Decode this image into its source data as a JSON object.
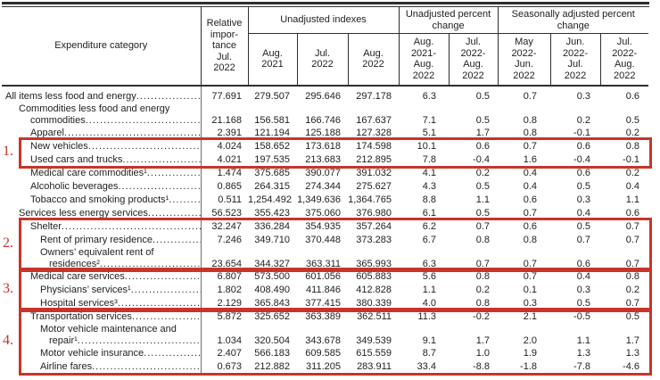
{
  "table": {
    "header": {
      "expenditure_category": "Expenditure category",
      "relative_importance": "Relative\nimpor-\ntance\nJul.\n2022",
      "groups": [
        {
          "label": "Unadjusted indexes",
          "cols": [
            "Aug.\n2021",
            "Jul.\n2022",
            "Aug.\n2022"
          ]
        },
        {
          "label": "Unadjusted percent\nchange",
          "cols": [
            "Aug.\n2021-\nAug.\n2022",
            "Jul.\n2022-\nAug.\n2022"
          ]
        },
        {
          "label": "Seasonally adjusted percent\nchange",
          "cols": [
            "May\n2022-\nJun.\n2022",
            "Jun.\n2022-\nJul.\n2022",
            "Jul.\n2022-\nAug.\n2022"
          ]
        }
      ]
    },
    "rows": [
      {
        "lines": [
          {
            "text": "All items less food and energy",
            "indent": 0
          }
        ],
        "values": [
          "77.691",
          "279.507",
          "295.646",
          "297.178",
          "6.3",
          "0.5",
          "0.7",
          "0.3",
          "0.6"
        ]
      },
      {
        "lines": [
          {
            "text": "Commodities less food and energy",
            "indent": 1
          },
          {
            "text": "commodities",
            "indent": 2
          }
        ],
        "values": [
          "21.168",
          "156.581",
          "166.746",
          "167.637",
          "7.1",
          "0.5",
          "0.8",
          "0.2",
          "0.5"
        ]
      },
      {
        "lines": [
          {
            "text": "Apparel",
            "indent": 2
          }
        ],
        "values": [
          "2.391",
          "121.194",
          "125.188",
          "127.328",
          "5.1",
          "1.7",
          "0.8",
          "-0.1",
          "0.2"
        ]
      },
      {
        "lines": [
          {
            "text": "New vehicles",
            "indent": 2
          }
        ],
        "values": [
          "4.024",
          "158.652",
          "173.618",
          "174.598",
          "10.1",
          "0.6",
          "0.7",
          "0.6",
          "0.8"
        ]
      },
      {
        "lines": [
          {
            "text": "Used cars and trucks",
            "indent": 2
          }
        ],
        "values": [
          "4.021",
          "197.535",
          "213.683",
          "212.895",
          "7.8",
          "-0.4",
          "1.6",
          "-0.4",
          "-0.1"
        ]
      },
      {
        "lines": [
          {
            "text": "Medical care commodities¹",
            "indent": 2
          }
        ],
        "values": [
          "1.474",
          "375.685",
          "390.077",
          "391.032",
          "4.1",
          "0.2",
          "0.4",
          "0.6",
          "0.2"
        ]
      },
      {
        "lines": [
          {
            "text": "Alcoholic beverages",
            "indent": 2
          }
        ],
        "values": [
          "0.865",
          "264.315",
          "274.344",
          "275.627",
          "4.3",
          "0.5",
          "0.4",
          "0.5",
          "0.4"
        ]
      },
      {
        "lines": [
          {
            "text": "Tobacco and smoking products¹",
            "indent": 2
          }
        ],
        "values": [
          "0.511",
          "1,254.492",
          "1,349.636",
          "1,364.765",
          "8.8",
          "1.1",
          "0.6",
          "0.3",
          "1.1"
        ]
      },
      {
        "lines": [
          {
            "text": "Services less energy services",
            "indent": 1
          }
        ],
        "values": [
          "56.523",
          "355.423",
          "375.060",
          "376.980",
          "6.1",
          "0.5",
          "0.7",
          "0.4",
          "0.6"
        ]
      },
      {
        "lines": [
          {
            "text": "Shelter",
            "indent": 2
          }
        ],
        "values": [
          "32.247",
          "336.284",
          "354.935",
          "357.264",
          "6.2",
          "0.7",
          "0.6",
          "0.5",
          "0.7"
        ]
      },
      {
        "lines": [
          {
            "text": "Rent of primary residence",
            "indent": 3
          }
        ],
        "values": [
          "7.246",
          "349.710",
          "370.448",
          "373.283",
          "6.7",
          "0.8",
          "0.8",
          "0.7",
          "0.7"
        ]
      },
      {
        "lines": [
          {
            "text": "Owners’ equivalent rent of",
            "indent": 3
          },
          {
            "text": "residences²",
            "indent": 4
          }
        ],
        "values": [
          "23.654",
          "344.327",
          "363.311",
          "365.993",
          "6.3",
          "0.7",
          "0.7",
          "0.6",
          "0.7"
        ]
      },
      {
        "lines": [
          {
            "text": "Medical care services",
            "indent": 2
          }
        ],
        "values": [
          "6.807",
          "573.500",
          "601.056",
          "605.883",
          "5.6",
          "0.8",
          "0.7",
          "0.4",
          "0.8"
        ]
      },
      {
        "lines": [
          {
            "text": "Physicians’ services¹",
            "indent": 3
          }
        ],
        "values": [
          "1.802",
          "408.490",
          "411.846",
          "412.828",
          "1.1",
          "0.2",
          "0.1",
          "0.3",
          "0.2"
        ]
      },
      {
        "lines": [
          {
            "text": "Hospital services³",
            "indent": 3
          }
        ],
        "values": [
          "2.129",
          "365.843",
          "377.415",
          "380.339",
          "4.0",
          "0.8",
          "0.3",
          "0.5",
          "0.7"
        ]
      },
      {
        "lines": [
          {
            "text": "Transportation services",
            "indent": 2
          }
        ],
        "values": [
          "5.872",
          "325.652",
          "363.389",
          "362.511",
          "11.3",
          "-0.2",
          "2.1",
          "-0.5",
          "0.5"
        ]
      },
      {
        "lines": [
          {
            "text": "Motor vehicle maintenance and",
            "indent": 3
          },
          {
            "text": "repair¹",
            "indent": 4
          }
        ],
        "values": [
          "1.034",
          "320.504",
          "343.678",
          "349.539",
          "9.1",
          "1.7",
          "2.0",
          "1.1",
          "1.7"
        ]
      },
      {
        "lines": [
          {
            "text": "Motor vehicle insurance",
            "indent": 3
          }
        ],
        "values": [
          "2.407",
          "566.183",
          "609.585",
          "615.559",
          "8.7",
          "1.0",
          "1.9",
          "1.3",
          "1.3"
        ]
      },
      {
        "lines": [
          {
            "text": "Airline fares",
            "indent": 3
          }
        ],
        "values": [
          "0.673",
          "212.882",
          "311.205",
          "283.911",
          "33.4",
          "-8.8",
          "-1.8",
          "-7.8",
          "-4.6"
        ]
      }
    ]
  },
  "annotations": [
    {
      "label": "1.",
      "first_row": 3,
      "last_row": 4
    },
    {
      "label": "2.",
      "first_row": 9,
      "last_row": 11
    },
    {
      "label": "3.",
      "first_row": 12,
      "last_row": 14
    },
    {
      "label": "4.",
      "first_row": 15,
      "last_row": 18
    }
  ],
  "colors": {
    "annotation_red": "#c8342a",
    "rule_dark": "#2e2e2e"
  }
}
